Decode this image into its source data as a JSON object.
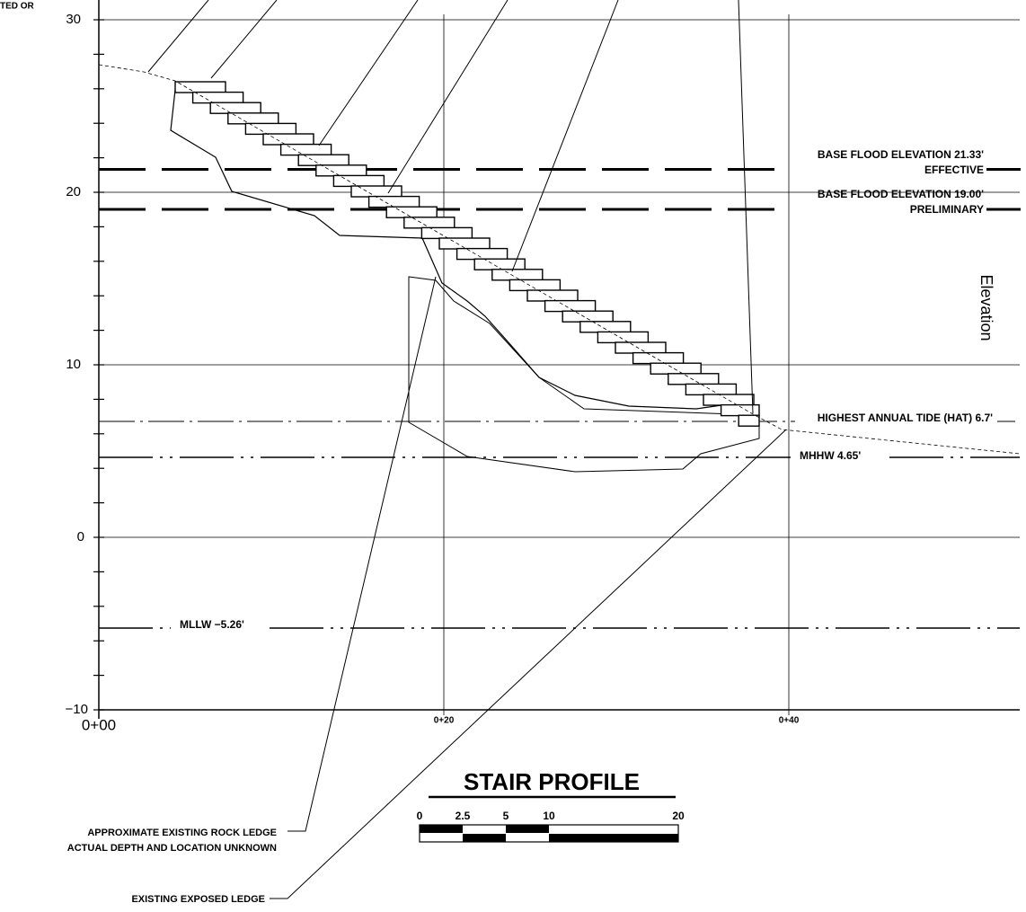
{
  "header_fragment": "TED OR",
  "axis": {
    "label": "Elevation",
    "elevation_labels": [
      "30",
      "20",
      "10",
      "0",
      "−10"
    ],
    "station_labels": [
      "0+00",
      "0+20",
      "0+40"
    ]
  },
  "levels": {
    "bfe_effective": {
      "label": "BASE FLOOD ELEVATION 21.33'",
      "note": "EFFECTIVE"
    },
    "bfe_preliminary": {
      "label": "BASE FLOOD ELEVATION 19.00'",
      "note": "PRELIMINARY"
    },
    "hat": {
      "label": "HIGHEST ANNUAL TIDE (HAT) 6.7'"
    },
    "mhhw": {
      "label": "MHHW 4.65'"
    },
    "mllw": {
      "label": "MLLW −5.26'"
    }
  },
  "title": "STAIR PROFILE",
  "scale_labels": [
    "0",
    "2.5",
    "5",
    "10",
    "20"
  ],
  "callouts": {
    "rock_ledge": [
      "APPROXIMATE EXISTING ROCK LEDGE",
      "ACTUAL DEPTH AND LOCATION UNKNOWN"
    ],
    "exposed_ledge": "EXISTING EXPOSED LEDGE"
  }
}
